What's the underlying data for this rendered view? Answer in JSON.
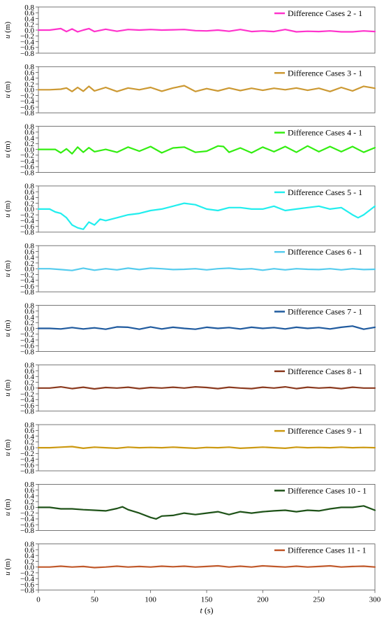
{
  "figure": {
    "xlabel_var": "t",
    "xlabel_unit": " (s)",
    "ylabel_var": "u",
    "ylabel_unit": " (m)"
  },
  "chart_data": [
    {
      "type": "line",
      "series": [
        {
          "name": "Difference Cases 2 - 1",
          "color": "#ff33cc",
          "x": [
            0,
            10,
            20,
            25,
            30,
            35,
            40,
            45,
            50,
            60,
            70,
            80,
            90,
            100,
            110,
            120,
            130,
            140,
            150,
            160,
            170,
            180,
            190,
            200,
            210,
            220,
            230,
            240,
            250,
            260,
            270,
            280,
            290,
            300
          ],
          "y": [
            0.0,
            0.0,
            0.05,
            -0.05,
            0.04,
            -0.06,
            0.0,
            0.05,
            -0.05,
            0.03,
            -0.04,
            0.02,
            0.0,
            0.02,
            0.0,
            0.01,
            0.02,
            -0.02,
            -0.03,
            0.0,
            -0.04,
            0.02,
            -0.05,
            -0.03,
            -0.05,
            0.02,
            -0.06,
            -0.04,
            -0.05,
            -0.03,
            -0.06,
            -0.06,
            -0.03,
            -0.05
          ]
        }
      ],
      "xlim": [
        0,
        300
      ],
      "ylim": [
        -0.8,
        0.8
      ],
      "yticks": [
        "0.8",
        "0.6",
        "0.4",
        "0.2",
        "0.0",
        "−0.2",
        "−0.4",
        "−0.6",
        "−0.8"
      ]
    },
    {
      "type": "line",
      "series": [
        {
          "name": "Difference Cases 3 - 1",
          "color": "#cc9933",
          "x": [
            0,
            10,
            20,
            25,
            30,
            35,
            40,
            45,
            50,
            60,
            70,
            80,
            90,
            100,
            110,
            120,
            130,
            140,
            150,
            160,
            170,
            180,
            190,
            200,
            210,
            220,
            230,
            240,
            250,
            260,
            270,
            280,
            290,
            300
          ],
          "y": [
            0.0,
            0.0,
            0.02,
            0.06,
            -0.06,
            0.08,
            -0.05,
            0.12,
            -0.04,
            0.08,
            -0.06,
            0.06,
            0.0,
            0.08,
            -0.05,
            0.06,
            0.14,
            -0.06,
            0.04,
            -0.04,
            0.06,
            -0.03,
            0.05,
            -0.02,
            0.05,
            0.0,
            0.06,
            -0.02,
            0.05,
            -0.06,
            0.08,
            -0.04,
            0.12,
            0.05
          ]
        }
      ],
      "xlim": [
        0,
        300
      ],
      "ylim": [
        -0.8,
        0.8
      ],
      "yticks": [
        "0.8",
        "0.6",
        "0.4",
        "0.2",
        "0.0",
        "−0.2",
        "−0.4",
        "−0.6",
        "−0.8"
      ]
    },
    {
      "type": "line",
      "series": [
        {
          "name": "Difference Cases 4 - 1",
          "color": "#33ee11",
          "x": [
            0,
            10,
            15,
            20,
            25,
            30,
            35,
            40,
            45,
            50,
            60,
            70,
            80,
            90,
            100,
            110,
            120,
            130,
            140,
            150,
            160,
            165,
            170,
            180,
            190,
            200,
            210,
            220,
            230,
            240,
            250,
            260,
            270,
            280,
            290,
            300
          ],
          "y": [
            0.0,
            0.0,
            0.0,
            -0.12,
            0.02,
            -0.15,
            0.08,
            -0.1,
            0.06,
            -0.08,
            0.0,
            -0.1,
            0.08,
            -0.06,
            0.1,
            -0.12,
            0.05,
            0.08,
            -0.1,
            -0.06,
            0.12,
            0.1,
            -0.1,
            0.05,
            -0.12,
            0.08,
            -0.08,
            0.1,
            -0.1,
            0.12,
            -0.08,
            0.1,
            -0.08,
            0.1,
            -0.1,
            0.06
          ]
        }
      ],
      "xlim": [
        0,
        300
      ],
      "ylim": [
        -0.8,
        0.8
      ],
      "yticks": [
        "0.8",
        "0.6",
        "0.4",
        "0.2",
        "0.0",
        "−0.2",
        "−0.4",
        "−0.6",
        "−0.8"
      ]
    },
    {
      "type": "line",
      "series": [
        {
          "name": "Difference Cases 5 - 1",
          "color": "#22eeee",
          "x": [
            0,
            10,
            15,
            20,
            25,
            30,
            35,
            40,
            45,
            50,
            55,
            60,
            70,
            80,
            90,
            100,
            110,
            120,
            130,
            140,
            150,
            160,
            170,
            180,
            190,
            200,
            210,
            220,
            230,
            240,
            250,
            260,
            270,
            280,
            285,
            290,
            300
          ],
          "y": [
            0.0,
            0.0,
            -0.1,
            -0.15,
            -0.3,
            -0.55,
            -0.65,
            -0.7,
            -0.45,
            -0.55,
            -0.35,
            -0.4,
            -0.3,
            -0.2,
            -0.15,
            -0.05,
            0.0,
            0.1,
            0.2,
            0.15,
            0.0,
            -0.05,
            0.05,
            0.05,
            0.0,
            0.0,
            0.1,
            -0.05,
            0.0,
            0.05,
            0.1,
            0.0,
            0.05,
            -0.2,
            -0.3,
            -0.2,
            0.1
          ]
        }
      ],
      "xlim": [
        0,
        300
      ],
      "ylim": [
        -0.8,
        0.8
      ],
      "yticks": [
        "0.8",
        "0.6",
        "0.4",
        "0.2",
        "0.0",
        "−0.2",
        "−0.4",
        "−0.6",
        "−0.8"
      ]
    },
    {
      "type": "line",
      "series": [
        {
          "name": "Difference Cases 6 - 1",
          "color": "#55ccee",
          "x": [
            0,
            10,
            20,
            30,
            40,
            50,
            60,
            70,
            80,
            90,
            100,
            110,
            120,
            130,
            140,
            150,
            160,
            170,
            180,
            190,
            200,
            210,
            220,
            230,
            240,
            250,
            260,
            270,
            280,
            290,
            300
          ],
          "y": [
            0.0,
            0.0,
            -0.03,
            -0.06,
            0.02,
            -0.05,
            0.0,
            -0.04,
            0.02,
            -0.03,
            0.02,
            0.0,
            -0.03,
            -0.02,
            0.0,
            -0.04,
            0.0,
            0.02,
            -0.02,
            0.0,
            -0.05,
            0.0,
            -0.04,
            0.0,
            -0.02,
            -0.03,
            0.0,
            -0.04,
            0.0,
            -0.03,
            -0.02
          ]
        }
      ],
      "xlim": [
        0,
        300
      ],
      "ylim": [
        -0.8,
        0.8
      ],
      "yticks": [
        "0.8",
        "0.6",
        "0.4",
        "0.2",
        "0.0",
        "−0.2",
        "−0.4",
        "−0.6",
        "−0.8"
      ]
    },
    {
      "type": "line",
      "series": [
        {
          "name": "Difference Cases 7 - 1",
          "color": "#1f5a9e",
          "x": [
            0,
            10,
            20,
            30,
            40,
            50,
            60,
            70,
            80,
            90,
            100,
            110,
            120,
            130,
            140,
            150,
            160,
            170,
            180,
            190,
            200,
            210,
            220,
            230,
            240,
            250,
            260,
            270,
            280,
            290,
            300
          ],
          "y": [
            0.0,
            0.0,
            -0.02,
            0.03,
            -0.02,
            0.02,
            -0.03,
            0.05,
            0.04,
            -0.03,
            0.05,
            -0.02,
            0.04,
            0.0,
            -0.03,
            0.04,
            0.0,
            0.03,
            -0.02,
            0.04,
            0.0,
            0.03,
            -0.02,
            0.04,
            0.0,
            0.03,
            -0.02,
            0.04,
            0.08,
            -0.03,
            0.04
          ]
        }
      ],
      "xlim": [
        0,
        300
      ],
      "ylim": [
        -0.8,
        0.8
      ],
      "yticks": [
        "0.8",
        "0.6",
        "0.4",
        "0.2",
        "0.0",
        "−0.2",
        "−0.4",
        "−0.6",
        "−0.8"
      ]
    },
    {
      "type": "line",
      "series": [
        {
          "name": "Difference Cases 8 - 1",
          "color": "#8b3a1f",
          "x": [
            0,
            10,
            20,
            30,
            40,
            50,
            60,
            70,
            80,
            90,
            100,
            110,
            120,
            130,
            140,
            150,
            160,
            170,
            180,
            190,
            200,
            210,
            220,
            230,
            240,
            250,
            260,
            270,
            280,
            290,
            300
          ],
          "y": [
            0.0,
            0.0,
            0.04,
            -0.02,
            0.03,
            -0.03,
            0.02,
            0.0,
            0.03,
            -0.02,
            0.02,
            0.0,
            0.03,
            0.0,
            0.04,
            0.02,
            -0.02,
            0.03,
            0.0,
            -0.02,
            0.03,
            0.0,
            0.04,
            -0.02,
            0.03,
            0.0,
            0.02,
            -0.02,
            0.03,
            0.0,
            0.0
          ]
        }
      ],
      "xlim": [
        0,
        300
      ],
      "ylim": [
        -0.8,
        0.8
      ],
      "yticks": [
        "0.8",
        "0.6",
        "0.4",
        "0.2",
        "0.0",
        "−0.2",
        "−0.4",
        "−0.6",
        "−0.8"
      ]
    },
    {
      "type": "line",
      "series": [
        {
          "name": "Difference Cases 9 - 1",
          "color": "#cc9911",
          "x": [
            0,
            10,
            20,
            30,
            40,
            50,
            60,
            70,
            80,
            90,
            100,
            110,
            120,
            130,
            140,
            150,
            160,
            170,
            180,
            190,
            200,
            210,
            220,
            230,
            240,
            250,
            260,
            270,
            280,
            290,
            300
          ],
          "y": [
            0.0,
            0.0,
            0.02,
            0.04,
            -0.02,
            0.02,
            0.0,
            -0.02,
            0.02,
            0.0,
            0.01,
            0.0,
            0.02,
            0.0,
            -0.02,
            0.01,
            0.0,
            0.02,
            -0.02,
            0.0,
            0.02,
            0.0,
            -0.02,
            0.02,
            0.0,
            0.01,
            0.0,
            0.02,
            0.0,
            0.01,
            0.0
          ]
        }
      ],
      "xlim": [
        0,
        300
      ],
      "ylim": [
        -0.8,
        0.8
      ],
      "yticks": [
        "0.8",
        "0.6",
        "0.4",
        "0.2",
        "0.0",
        "−0.2",
        "−0.4",
        "−0.6",
        "−0.8"
      ]
    },
    {
      "type": "line",
      "series": [
        {
          "name": "Difference Cases 10 - 1",
          "color": "#1e5218",
          "x": [
            0,
            10,
            20,
            30,
            40,
            50,
            60,
            70,
            75,
            80,
            90,
            100,
            105,
            110,
            120,
            130,
            140,
            150,
            160,
            170,
            180,
            190,
            200,
            210,
            220,
            230,
            240,
            250,
            260,
            270,
            280,
            290,
            300
          ],
          "y": [
            0.0,
            0.0,
            -0.05,
            -0.05,
            -0.08,
            -0.1,
            -0.12,
            -0.04,
            0.02,
            -0.08,
            -0.2,
            -0.35,
            -0.4,
            -0.3,
            -0.28,
            -0.2,
            -0.25,
            -0.2,
            -0.15,
            -0.25,
            -0.15,
            -0.2,
            -0.15,
            -0.12,
            -0.1,
            -0.15,
            -0.1,
            -0.12,
            -0.05,
            0.0,
            0.0,
            0.05,
            -0.1
          ]
        }
      ],
      "xlim": [
        0,
        300
      ],
      "ylim": [
        -0.8,
        0.8
      ],
      "yticks": [
        "0.8",
        "0.6",
        "0.4",
        "0.2",
        "0.0",
        "−0.2",
        "−0.4",
        "−0.6",
        "−0.8"
      ]
    },
    {
      "type": "line",
      "series": [
        {
          "name": "Difference Cases 11 - 1",
          "color": "#c0592b",
          "x": [
            0,
            10,
            20,
            30,
            40,
            50,
            60,
            70,
            80,
            90,
            100,
            110,
            120,
            130,
            140,
            150,
            160,
            170,
            180,
            190,
            200,
            210,
            220,
            230,
            240,
            250,
            260,
            270,
            280,
            290,
            300
          ],
          "y": [
            0.0,
            0.0,
            0.03,
            0.0,
            0.02,
            -0.02,
            0.0,
            0.03,
            0.0,
            0.02,
            0.0,
            0.03,
            0.01,
            0.03,
            0.0,
            0.02,
            0.04,
            0.0,
            0.03,
            0.0,
            0.04,
            0.02,
            0.0,
            0.03,
            0.0,
            0.02,
            0.04,
            0.0,
            0.02,
            0.03,
            0.0
          ]
        }
      ],
      "xlim": [
        0,
        300
      ],
      "ylim": [
        -0.8,
        0.8
      ],
      "yticks": [
        "0.8",
        "0.6",
        "0.4",
        "0.2",
        "0.0",
        "−0.2",
        "−0.4",
        "−0.6",
        "−0.8"
      ],
      "xticks": [
        "0",
        "50",
        "100",
        "150",
        "200",
        "250",
        "300"
      ]
    }
  ]
}
